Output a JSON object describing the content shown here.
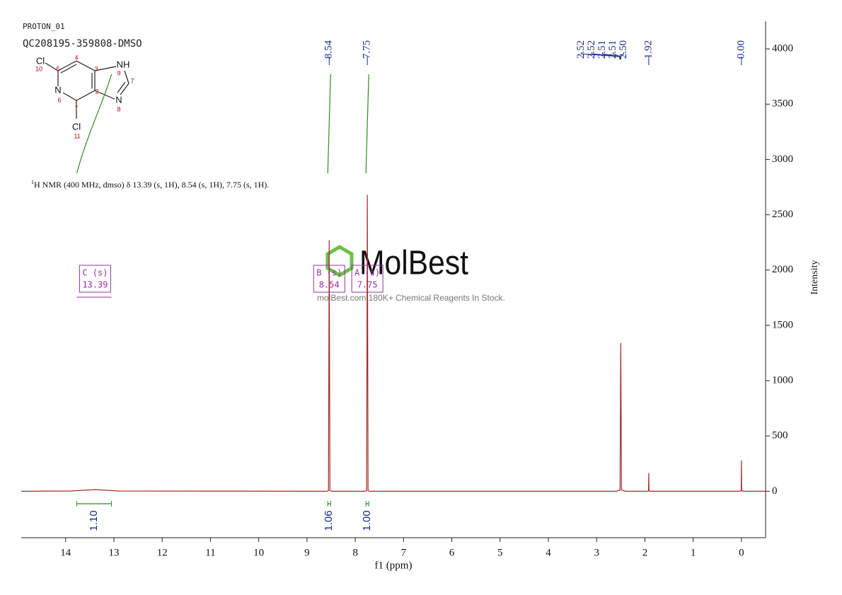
{
  "header": {
    "experiment": "PROTON_01",
    "sample": "QC208195-359808-DMSO"
  },
  "structure": {
    "atoms": [
      "Cl",
      "NH",
      "N",
      "N",
      "Cl"
    ],
    "atom_numbers": [
      10,
      4,
      5,
      3,
      2,
      1,
      9,
      7,
      6,
      8,
      11
    ]
  },
  "description": {
    "nucleus": "1",
    "text": "H NMR (400 MHz, dmso) δ 13.39 (s, 1H), 8.54 (s, 1H), 7.75 (s, 1H)."
  },
  "watermark": {
    "brand": "MolBest",
    "tagline": "molBest.com,180K+ Chemical Reagents In Stock."
  },
  "chart_data": {
    "type": "line",
    "x_label": "f1 (ppm)",
    "y_label": "Intensity",
    "xlim": [
      14.92,
      -0.5
    ],
    "ylim": [
      -420,
      4250
    ],
    "xticks": [
      14,
      13,
      12,
      11,
      10,
      9,
      8,
      7,
      6,
      5,
      4,
      3,
      2,
      1,
      0
    ],
    "yticks": [
      0,
      500,
      1000,
      1500,
      2000,
      2500,
      3000,
      3500,
      4000
    ],
    "color": "#a52a2a",
    "x": [
      14.92,
      13.9,
      13.39,
      12.9,
      8.6,
      8.555,
      8.54,
      8.525,
      8.48,
      7.8,
      7.765,
      7.75,
      7.735,
      7.7,
      2.6,
      2.515,
      2.5,
      2.485,
      2.4,
      1.95,
      1.925,
      1.92,
      1.915,
      1.89,
      0.05,
      0.005,
      0,
      -0.005,
      -0.05,
      -0.5
    ],
    "values": [
      0,
      2,
      15,
      2,
      0,
      5,
      2270,
      5,
      0,
      0,
      5,
      2680,
      5,
      0,
      0,
      10,
      1340,
      10,
      0,
      0,
      3,
      165,
      3,
      0,
      0,
      3,
      280,
      3,
      0,
      0
    ],
    "peak_labels": [
      8.54,
      7.75,
      2.52,
      2.52,
      2.51,
      2.51,
      {
        "value": 2.5,
        "label": "2.50"
      },
      1.92,
      {
        "value": 0,
        "label": "0.00"
      }
    ],
    "integrals": {
      "values": [
        1.1,
        1.06,
        1.0
      ],
      "value_labels": [
        "1.10",
        "1.06",
        "1.00"
      ],
      "ranges": [
        [
          13.77,
          13.05
        ],
        [
          8.57,
          8.51
        ],
        [
          7.78,
          7.72
        ]
      ],
      "color": "#2e8b22"
    },
    "multiplets": [
      {
        "name": "C (s)",
        "shift": 13.39
      },
      {
        "name": "B (s)",
        "shift": 8.54
      },
      {
        "name": "A (s)",
        "shift": 7.75
      }
    ]
  }
}
